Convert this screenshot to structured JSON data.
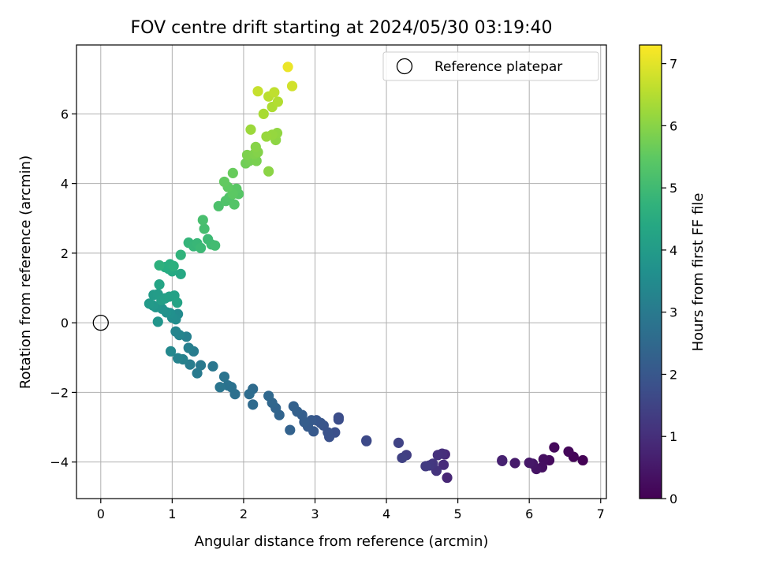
{
  "chart_data": {
    "type": "scatter",
    "title": "FOV centre drift starting at 2024/05/30 03:19:40",
    "xlabel": "Angular distance from reference (arcmin)",
    "ylabel": "Rotation from reference (arcmin)",
    "xlim": [
      -0.34,
      7.08
    ],
    "ylim": [
      -5.05,
      7.98
    ],
    "xticks": [
      0,
      1,
      2,
      3,
      4,
      5,
      6,
      7
    ],
    "xtick_labels": [
      "0",
      "1",
      "2",
      "3",
      "4",
      "5",
      "6",
      "7"
    ],
    "yticks": [
      -4,
      -2,
      0,
      2,
      4,
      6
    ],
    "ytick_labels": [
      "−4",
      "−2",
      "0",
      "2",
      "4",
      "6"
    ],
    "grid": true,
    "legend": {
      "position": "top-right",
      "entries": [
        "Reference platepar"
      ]
    },
    "reference": {
      "x": 0,
      "y": 0
    },
    "colorbar": {
      "label": "Hours from first FF file",
      "range": [
        0,
        7.3
      ],
      "ticks": [
        0,
        1,
        2,
        3,
        4,
        5,
        6,
        7
      ],
      "tick_labels": [
        "0",
        "1",
        "2",
        "3",
        "4",
        "5",
        "6",
        "7"
      ],
      "colormap": "viridis"
    },
    "points": [
      [
        6.75,
        -3.95,
        0.02
      ],
      [
        6.62,
        -3.85,
        0.08
      ],
      [
        6.55,
        -3.7,
        0.12
      ],
      [
        6.35,
        -3.58,
        0.18
      ],
      [
        6.28,
        -3.95,
        0.22
      ],
      [
        6.2,
        -3.92,
        0.28
      ],
      [
        6.18,
        -4.15,
        0.32
      ],
      [
        6.1,
        -4.2,
        0.38
      ],
      [
        6.05,
        -4.05,
        0.42
      ],
      [
        6.0,
        -4.02,
        0.48
      ],
      [
        5.8,
        -4.03,
        0.55
      ],
      [
        5.62,
        -3.95,
        0.62
      ],
      [
        5.62,
        -3.97,
        0.68
      ],
      [
        4.85,
        -4.45,
        0.8
      ],
      [
        4.82,
        -3.78,
        0.86
      ],
      [
        4.8,
        -4.08,
        0.92
      ],
      [
        4.78,
        -3.76,
        0.98
      ],
      [
        4.72,
        -3.8,
        1.04
      ],
      [
        4.7,
        -4.25,
        1.1
      ],
      [
        4.65,
        -4.05,
        1.16
      ],
      [
        4.6,
        -4.1,
        1.22
      ],
      [
        4.55,
        -4.12,
        1.28
      ],
      [
        4.28,
        -3.8,
        1.36
      ],
      [
        4.22,
        -3.88,
        1.42
      ],
      [
        4.17,
        -3.45,
        1.48
      ],
      [
        3.72,
        -3.38,
        1.6
      ],
      [
        3.72,
        -3.4,
        1.64
      ],
      [
        3.33,
        -2.72,
        1.72
      ],
      [
        3.33,
        -2.78,
        1.76
      ],
      [
        3.28,
        -3.15,
        1.8
      ],
      [
        3.2,
        -3.28,
        1.84
      ],
      [
        3.18,
        -3.15,
        1.88
      ],
      [
        3.12,
        -2.95,
        1.92
      ],
      [
        3.08,
        -2.88,
        1.96
      ],
      [
        3.02,
        -2.8,
        2.0
      ],
      [
        2.98,
        -3.12,
        2.04
      ],
      [
        2.95,
        -2.8,
        2.08
      ],
      [
        2.9,
        -2.98,
        2.12
      ],
      [
        2.85,
        -2.85,
        2.16
      ],
      [
        2.82,
        -2.65,
        2.2
      ],
      [
        2.75,
        -2.55,
        2.24
      ],
      [
        2.7,
        -2.4,
        2.28
      ],
      [
        2.65,
        -3.08,
        2.32
      ],
      [
        2.5,
        -2.65,
        2.36
      ],
      [
        2.45,
        -2.45,
        2.4
      ],
      [
        2.4,
        -2.3,
        2.44
      ],
      [
        2.35,
        -2.1,
        2.48
      ],
      [
        2.13,
        -2.35,
        2.54
      ],
      [
        2.13,
        -1.9,
        2.58
      ],
      [
        2.08,
        -2.05,
        2.62
      ],
      [
        1.88,
        -2.05,
        2.7
      ],
      [
        1.83,
        -1.85,
        2.74
      ],
      [
        1.78,
        -1.8,
        2.78
      ],
      [
        1.73,
        -1.55,
        2.82
      ],
      [
        1.67,
        -1.85,
        2.86
      ],
      [
        1.57,
        -1.25,
        2.9
      ],
      [
        1.4,
        -1.22,
        2.96
      ],
      [
        1.35,
        -1.45,
        3.0
      ],
      [
        1.3,
        -0.82,
        3.06
      ],
      [
        1.25,
        -1.2,
        3.1
      ],
      [
        1.23,
        -0.72,
        3.14
      ],
      [
        1.2,
        -0.4,
        3.18
      ],
      [
        1.15,
        -1.05,
        3.22
      ],
      [
        1.08,
        -1.02,
        3.26
      ],
      [
        1.1,
        -0.35,
        3.3
      ],
      [
        1.05,
        -0.25,
        3.34
      ],
      [
        0.98,
        -0.82,
        3.4
      ],
      [
        1.08,
        0.25,
        3.5
      ],
      [
        1.05,
        0.1,
        3.55
      ],
      [
        1.0,
        0.15,
        3.6
      ],
      [
        0.97,
        0.28,
        3.65
      ],
      [
        0.92,
        0.3,
        3.7
      ],
      [
        0.86,
        0.4,
        3.75
      ],
      [
        0.8,
        0.03,
        3.8
      ],
      [
        0.77,
        0.45,
        3.85
      ],
      [
        0.73,
        0.5,
        3.9
      ],
      [
        0.68,
        0.55,
        3.95
      ],
      [
        0.74,
        0.8,
        4.0
      ],
      [
        0.8,
        0.82,
        4.04
      ],
      [
        0.85,
        0.65,
        4.08
      ],
      [
        0.9,
        0.7,
        4.12
      ],
      [
        0.96,
        0.75,
        4.16
      ],
      [
        1.03,
        0.78,
        4.2
      ],
      [
        1.07,
        0.58,
        4.24
      ],
      [
        0.82,
        1.1,
        4.28
      ],
      [
        1.12,
        1.4,
        4.38
      ],
      [
        1.0,
        1.48,
        4.44
      ],
      [
        0.95,
        1.55,
        4.5
      ],
      [
        0.9,
        1.6,
        4.56
      ],
      [
        0.97,
        1.68,
        4.6
      ],
      [
        1.02,
        1.63,
        4.64
      ],
      [
        0.82,
        1.65,
        4.68
      ],
      [
        1.12,
        1.95,
        4.74
      ],
      [
        1.23,
        2.3,
        4.8
      ],
      [
        1.3,
        2.2,
        4.84
      ],
      [
        1.35,
        2.28,
        4.88
      ],
      [
        1.4,
        2.15,
        4.92
      ],
      [
        1.5,
        2.4,
        4.96
      ],
      [
        1.55,
        2.25,
        5.0
      ],
      [
        1.6,
        2.22,
        5.04
      ],
      [
        1.45,
        2.7,
        5.1
      ],
      [
        1.43,
        2.95,
        5.14
      ],
      [
        1.65,
        3.35,
        5.22
      ],
      [
        1.75,
        3.5,
        5.26
      ],
      [
        1.8,
        3.6,
        5.3
      ],
      [
        1.87,
        3.4,
        5.34
      ],
      [
        1.93,
        3.7,
        5.38
      ],
      [
        1.9,
        3.85,
        5.42
      ],
      [
        1.85,
        3.7,
        5.46
      ],
      [
        1.78,
        3.9,
        5.5
      ],
      [
        1.73,
        4.05,
        5.54
      ],
      [
        1.85,
        4.3,
        5.6
      ],
      [
        2.03,
        4.58,
        5.7
      ],
      [
        2.08,
        4.65,
        5.74
      ],
      [
        2.12,
        4.7,
        5.78
      ],
      [
        2.18,
        4.65,
        5.82
      ],
      [
        2.05,
        4.82,
        5.86
      ],
      [
        2.15,
        4.85,
        5.9
      ],
      [
        2.2,
        4.9,
        5.94
      ],
      [
        2.17,
        5.05,
        5.98
      ],
      [
        2.35,
        4.35,
        6.02
      ],
      [
        2.45,
        5.25,
        6.06
      ],
      [
        2.47,
        5.45,
        6.1
      ],
      [
        2.4,
        5.4,
        6.14
      ],
      [
        2.32,
        5.35,
        6.18
      ],
      [
        2.1,
        5.55,
        6.22
      ],
      [
        2.28,
        6.0,
        6.36
      ],
      [
        2.4,
        6.2,
        6.42
      ],
      [
        2.48,
        6.35,
        6.48
      ],
      [
        2.35,
        6.5,
        6.56
      ],
      [
        2.43,
        6.62,
        6.62
      ],
      [
        2.2,
        6.65,
        6.7
      ],
      [
        2.68,
        6.8,
        6.82
      ],
      [
        2.62,
        7.35,
        7.1
      ]
    ]
  }
}
